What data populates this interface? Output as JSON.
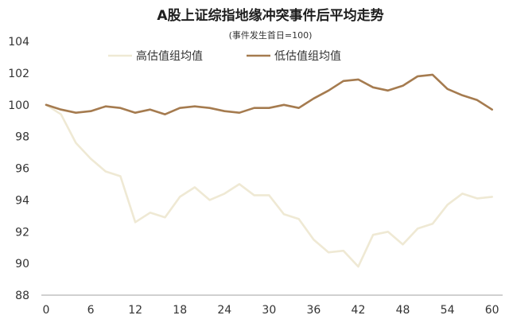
{
  "chart_data": {
    "type": "line",
    "title": "A股上证综指地缘冲突事件后平均走势",
    "subtitle": "(事件发生首日=100)",
    "xlabel": "",
    "ylabel": "",
    "xlim": [
      0,
      61
    ],
    "ylim": [
      88,
      104
    ],
    "x_ticks": [
      "0",
      "6",
      "12",
      "18",
      "24",
      "30",
      "36",
      "42",
      "48",
      "54",
      "60"
    ],
    "x_tick_values": [
      0,
      6,
      12,
      18,
      24,
      30,
      36,
      42,
      48,
      54,
      60
    ],
    "y_ticks": [
      "88",
      "90",
      "92",
      "94",
      "96",
      "98",
      "100",
      "102",
      "104"
    ],
    "y_tick_values": [
      88,
      90,
      92,
      94,
      96,
      98,
      100,
      102,
      104
    ],
    "grid": false,
    "legend_position": "top",
    "x": [
      0,
      2,
      4,
      6,
      8,
      10,
      12,
      14,
      16,
      18,
      20,
      22,
      24,
      26,
      28,
      30,
      32,
      34,
      36,
      38,
      40,
      42,
      44,
      46,
      48,
      50,
      52,
      54,
      56,
      58,
      60
    ],
    "series": [
      {
        "name": "高估值组均值",
        "color": "#efe9d4",
        "values": [
          100.0,
          99.4,
          97.6,
          96.6,
          95.8,
          95.5,
          92.6,
          93.2,
          92.9,
          94.2,
          94.8,
          94.0,
          94.4,
          95.0,
          94.3,
          94.3,
          93.1,
          92.8,
          91.5,
          90.7,
          90.8,
          89.8,
          91.8,
          92.0,
          91.2,
          92.2,
          92.5,
          93.7,
          94.4,
          94.1,
          94.2
        ]
      },
      {
        "name": "低估值组均值",
        "color": "#a57b4f",
        "values": [
          100.0,
          99.7,
          99.5,
          99.6,
          99.9,
          99.8,
          99.5,
          99.7,
          99.4,
          99.8,
          99.9,
          99.8,
          99.6,
          99.5,
          99.8,
          99.8,
          100.0,
          99.8,
          100.4,
          100.9,
          101.5,
          101.6,
          101.1,
          100.9,
          101.2,
          101.8,
          101.9,
          101.0,
          100.6,
          100.3,
          99.7
        ]
      }
    ]
  }
}
